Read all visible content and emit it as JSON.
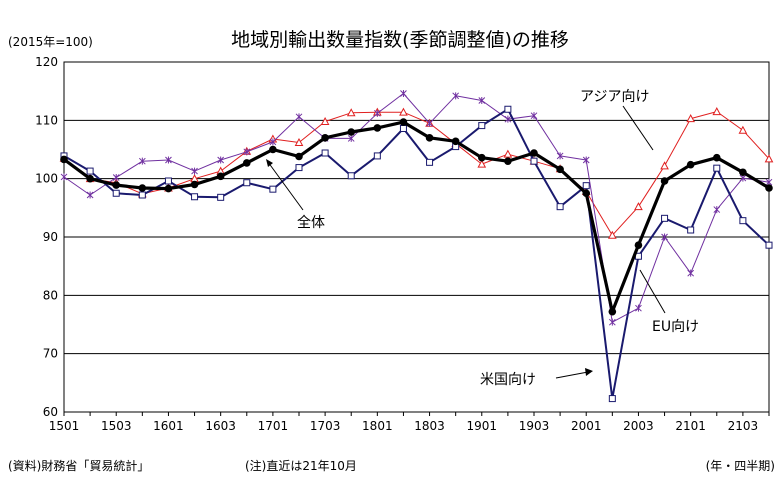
{
  "chart_data": {
    "type": "line",
    "title": "地域別輸出数量指数(季節調整値)の推移",
    "unit_label": "(2015年=100)",
    "xlabel": "(年・四半期)",
    "ylim": [
      60,
      120
    ],
    "yticks": [
      60,
      70,
      80,
      90,
      100,
      110,
      120
    ],
    "x": [
      "1501",
      "1502",
      "1503",
      "1504",
      "1601",
      "1602",
      "1603",
      "1604",
      "1701",
      "1702",
      "1703",
      "1704",
      "1801",
      "1802",
      "1803",
      "1804",
      "1901",
      "1902",
      "1903",
      "1904",
      "2001",
      "2002",
      "2003",
      "2004",
      "2101",
      "2102",
      "2103",
      "2104"
    ],
    "xtick_labels": [
      "1501",
      "1503",
      "1601",
      "1603",
      "1701",
      "1703",
      "1801",
      "1803",
      "1901",
      "1903",
      "2001",
      "2003",
      "2101",
      "2103"
    ],
    "grid": true,
    "series": [
      {
        "name": "全体",
        "color": "#000000",
        "marker": "circle",
        "values": [
          103.3,
          100.0,
          98.9,
          98.4,
          98.3,
          99.0,
          100.4,
          102.7,
          105.0,
          103.8,
          107.0,
          108.0,
          108.7,
          109.7,
          107.0,
          106.4,
          103.6,
          103.0,
          104.4,
          101.6,
          97.5,
          77.2,
          88.6,
          99.6,
          102.4,
          103.6,
          101.1,
          98.4
        ]
      },
      {
        "name": "アジア向け",
        "color": "#e02020",
        "marker": "triangle",
        "values": [
          103.5,
          100.0,
          99.3,
          97.4,
          98.4,
          100.0,
          101.3,
          104.7,
          106.8,
          106.2,
          109.8,
          111.3,
          111.4,
          111.4,
          109.5,
          106.0,
          102.5,
          104.2,
          103.0,
          101.7,
          97.8,
          90.3,
          95.2,
          102.2,
          110.3,
          111.5,
          108.3,
          103.4
        ]
      },
      {
        "name": "EU向け",
        "color": "#7030a0",
        "marker": "star",
        "values": [
          100.3,
          97.2,
          100.2,
          103.0,
          103.2,
          101.3,
          103.2,
          104.6,
          106.3,
          110.6,
          106.9,
          106.9,
          111.2,
          114.6,
          109.5,
          114.2,
          113.4,
          110.2,
          110.8,
          103.9,
          103.2,
          75.4,
          77.8,
          90.0,
          83.8,
          94.7,
          100.1,
          99.4
        ]
      },
      {
        "name": "米国向け",
        "color": "#1a1a6e",
        "marker": "square",
        "values": [
          103.9,
          101.3,
          97.5,
          97.2,
          99.6,
          96.9,
          96.8,
          99.3,
          98.2,
          101.9,
          104.4,
          100.5,
          103.9,
          108.6,
          102.8,
          105.5,
          109.1,
          111.9,
          103.0,
          95.2,
          98.8,
          62.3,
          86.7,
          93.2,
          91.2,
          101.8,
          92.8,
          88.6
        ]
      }
    ],
    "annotations": [
      "アジア向け",
      "全体",
      "EU向け",
      "米国向け"
    ]
  },
  "footer": {
    "source": "(資料)財務省「貿易統計」",
    "note": "(注)直近は21年10月"
  }
}
